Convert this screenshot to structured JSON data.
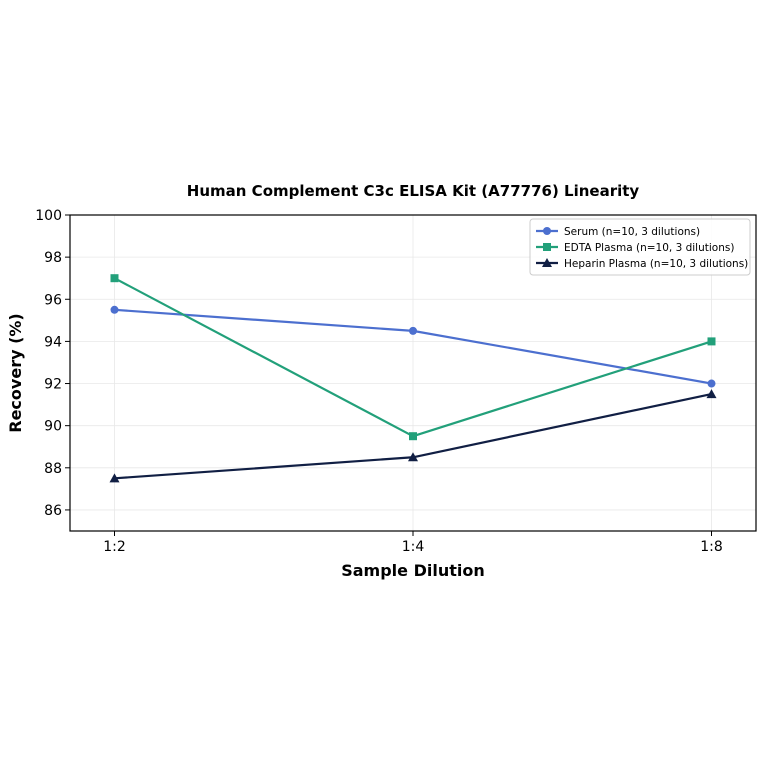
{
  "chart_data": {
    "type": "line",
    "title": "Human Complement C3c ELISA Kit (A77776) Linearity",
    "xlabel": "Sample Dilution",
    "ylabel": "Recovery (%)",
    "categories": [
      "1:2",
      "1:4",
      "1:8"
    ],
    "ylim": [
      85,
      100
    ],
    "yticks": [
      86,
      88,
      90,
      92,
      94,
      96,
      98,
      100
    ],
    "grid": true,
    "legend_position": "top-right",
    "series": [
      {
        "name": "Serum (n=10, 3 dilutions)",
        "values": [
          95.5,
          94.5,
          92.0
        ],
        "color": "#4c6fcf",
        "marker": "circle"
      },
      {
        "name": "EDTA Plasma (n=10, 3 dilutions)",
        "values": [
          97.0,
          89.5,
          94.0
        ],
        "color": "#22a07a",
        "marker": "square"
      },
      {
        "name": "Heparin Plasma (n=10, 3 dilutions)",
        "values": [
          87.5,
          88.5,
          91.5
        ],
        "color": "#111f44",
        "marker": "triangle"
      }
    ]
  }
}
